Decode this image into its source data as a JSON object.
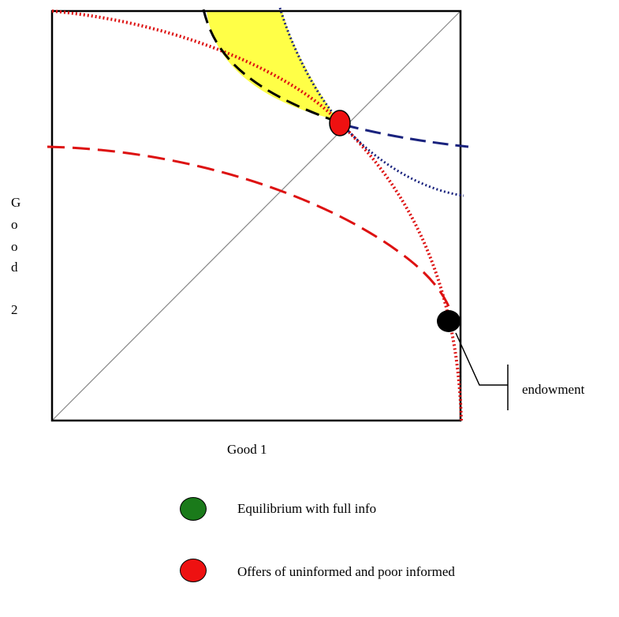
{
  "axes": {
    "y_label_chars": [
      "G",
      "o",
      "o",
      "d",
      "2"
    ],
    "x_label": "Good 1"
  },
  "annotation": {
    "endowment_label": "endowment"
  },
  "legend": [
    {
      "color": "#1a7a1a",
      "label": "Equilibrium with full info"
    },
    {
      "color": "#ee1111",
      "label": "Offers of uninformed and poor informed"
    }
  ],
  "colors": {
    "frame": "#000000",
    "diagonal": "#888888",
    "red_curve": "#dd1111",
    "blue_curve": "#1a237e",
    "shade": "#ffff33",
    "offer_point": "#ee1111",
    "endowment_point": "#000000"
  }
}
